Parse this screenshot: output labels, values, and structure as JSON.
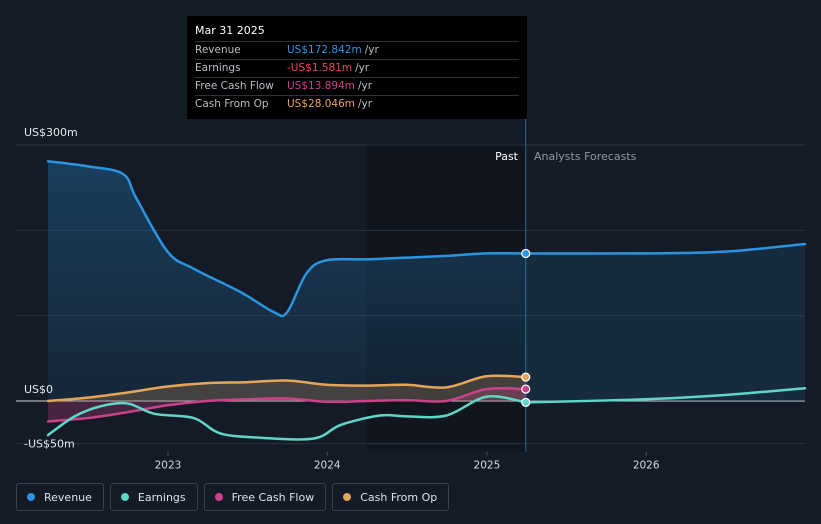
{
  "tooltip": {
    "date": "Mar 31 2025",
    "rows": [
      {
        "label": "Revenue",
        "value": "US$172.842m",
        "unit": "/yr",
        "color": "#2b94e0"
      },
      {
        "label": "Earnings",
        "value": "-US$1.581m",
        "unit": "/yr",
        "color": "#e8465e"
      },
      {
        "label": "Free Cash Flow",
        "value": "US$13.894m",
        "unit": "/yr",
        "color": "#c9428a"
      },
      {
        "label": "Cash From Op",
        "value": "US$28.046m",
        "unit": "/yr",
        "color": "#e6a65a"
      }
    ]
  },
  "segments": {
    "past": "Past",
    "forecast": "Analysts Forecasts"
  },
  "legend": [
    {
      "label": "Revenue",
      "color": "#2b94e0"
    },
    {
      "label": "Earnings",
      "color": "#5fd6c6"
    },
    {
      "label": "Free Cash Flow",
      "color": "#c9428a"
    },
    {
      "label": "Cash From Op",
      "color": "#e6a65a"
    }
  ],
  "chart_data": {
    "type": "line",
    "y_tick_labels": [
      {
        "label": "US$300m",
        "value": 300
      },
      {
        "label": "US$0",
        "value": 0
      },
      {
        "label": "-US$50m",
        "value": -50
      }
    ],
    "ylim": [
      -50,
      300
    ],
    "xlim": [
      "2022-04-01",
      "2026-12-31"
    ],
    "x_ticks": [
      {
        "label": "2023",
        "date": "2023-01-01"
      },
      {
        "label": "2024",
        "date": "2024-01-01"
      },
      {
        "label": "2025",
        "date": "2025-01-01"
      },
      {
        "label": "2026",
        "date": "2026-01-01"
      }
    ],
    "highlight_start": "2024-03-31",
    "past_end": "2025-03-31",
    "grid": true,
    "series": [
      {
        "name": "Revenue",
        "color": "#2b94e0",
        "fill": true,
        "points": [
          [
            "2022-04-01",
            281
          ],
          [
            "2022-07-01",
            275
          ],
          [
            "2022-09-20",
            266
          ],
          [
            "2022-10-20",
            238
          ],
          [
            "2022-12-31",
            175
          ],
          [
            "2023-03-01",
            155
          ],
          [
            "2023-06-15",
            128
          ],
          [
            "2023-09-01",
            104
          ],
          [
            "2023-10-01",
            104
          ],
          [
            "2023-11-15",
            150
          ],
          [
            "2023-12-31",
            165
          ],
          [
            "2024-03-31",
            166
          ],
          [
            "2024-06-30",
            168
          ],
          [
            "2024-09-30",
            170
          ],
          [
            "2024-12-31",
            173
          ],
          [
            "2025-03-31",
            172.842
          ]
        ],
        "forecast": [
          [
            "2025-03-31",
            172.842
          ],
          [
            "2025-12-31",
            173
          ],
          [
            "2026-06-30",
            175
          ],
          [
            "2026-12-31",
            184
          ]
        ]
      },
      {
        "name": "Earnings",
        "color": "#5fd6c6",
        "fill": false,
        "points": [
          [
            "2022-04-01",
            -40
          ],
          [
            "2022-06-01",
            -18
          ],
          [
            "2022-08-01",
            -6
          ],
          [
            "2022-10-01",
            -3
          ],
          [
            "2022-12-01",
            -15
          ],
          [
            "2023-03-01",
            -20
          ],
          [
            "2023-05-01",
            -38
          ],
          [
            "2023-08-01",
            -43
          ],
          [
            "2023-12-01",
            -44
          ],
          [
            "2024-02-01",
            -28
          ],
          [
            "2024-05-01",
            -17
          ],
          [
            "2024-07-01",
            -18
          ],
          [
            "2024-09-30",
            -17
          ],
          [
            "2024-12-31",
            5
          ],
          [
            "2025-03-31",
            -1.581
          ]
        ],
        "forecast": [
          [
            "2025-03-31",
            -1.581
          ],
          [
            "2025-12-31",
            2
          ],
          [
            "2026-06-30",
            7
          ],
          [
            "2026-12-31",
            15
          ]
        ]
      },
      {
        "name": "Free Cash Flow",
        "color": "#c9428a",
        "fill": true,
        "points": [
          [
            "2022-04-01",
            -24
          ],
          [
            "2022-07-01",
            -20
          ],
          [
            "2022-10-01",
            -13
          ],
          [
            "2022-12-31",
            -5
          ],
          [
            "2023-03-31",
            0
          ],
          [
            "2023-06-30",
            2
          ],
          [
            "2023-09-30",
            3
          ],
          [
            "2023-12-31",
            -1
          ],
          [
            "2024-03-31",
            0
          ],
          [
            "2024-06-30",
            1
          ],
          [
            "2024-09-30",
            0
          ],
          [
            "2024-12-31",
            14
          ],
          [
            "2025-03-31",
            13.894
          ]
        ]
      },
      {
        "name": "Cash From Op",
        "color": "#e6a65a",
        "fill": true,
        "points": [
          [
            "2022-04-01",
            0
          ],
          [
            "2022-07-01",
            4
          ],
          [
            "2022-10-01",
            10
          ],
          [
            "2022-12-31",
            17
          ],
          [
            "2023-03-31",
            21
          ],
          [
            "2023-06-30",
            22
          ],
          [
            "2023-09-30",
            24
          ],
          [
            "2023-12-31",
            19
          ],
          [
            "2024-03-31",
            18
          ],
          [
            "2024-06-30",
            19
          ],
          [
            "2024-09-30",
            16
          ],
          [
            "2024-12-31",
            29
          ],
          [
            "2025-03-31",
            28.046
          ]
        ]
      }
    ]
  }
}
